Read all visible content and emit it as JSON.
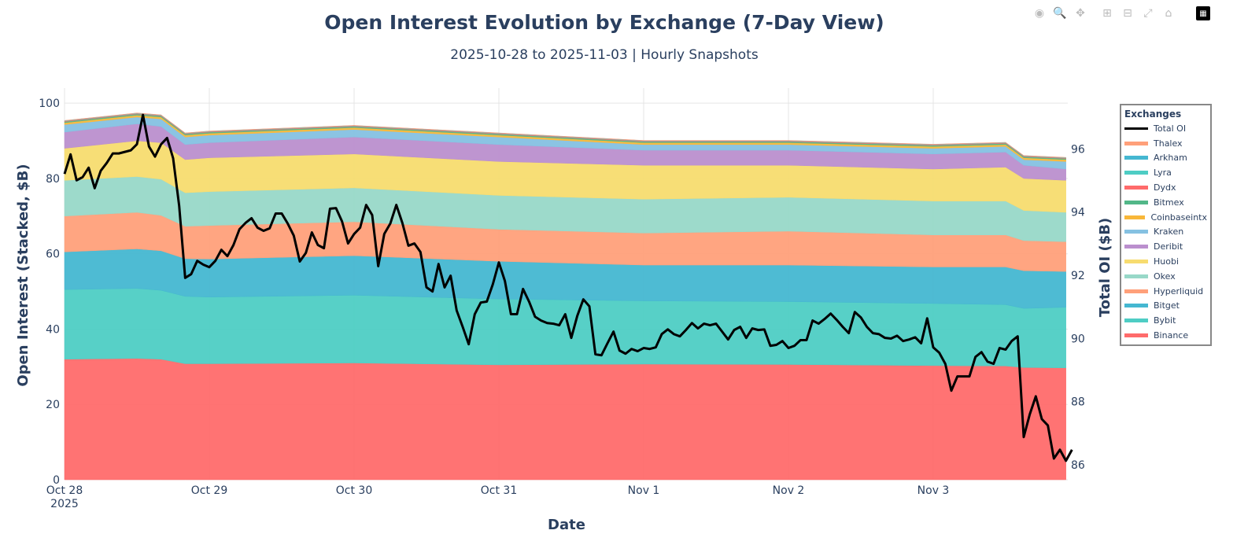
{
  "chart_data": {
    "type": "area",
    "title": "Open Interest Evolution by Exchange (7-Day View)",
    "subtitle": "2025-10-28 to 2025-11-03 | Hourly Snapshots",
    "xlabel": "Date",
    "ylabel": "Open Interest (Stacked, $B)",
    "y2label": "Total OI ($B)",
    "x_ticks": [
      "Oct 28\n2025",
      "Oct 29",
      "Oct 30",
      "Oct 31",
      "Nov 1",
      "Nov 2",
      "Nov 3"
    ],
    "x_start": "2025-10-28 00:00",
    "ylim": [
      0,
      104
    ],
    "y_ticks": [
      0,
      20,
      40,
      60,
      80,
      100
    ],
    "y2lim": [
      85.5,
      97.9
    ],
    "y2_ticks": [
      86,
      88,
      90,
      92,
      94,
      96
    ],
    "grid": true,
    "legend_title": "Exchanges",
    "legend_position": "right",
    "stack_hours": [
      0,
      12,
      16,
      20,
      24,
      48,
      72,
      96,
      120,
      144,
      156,
      159,
      166
    ],
    "series": [
      {
        "name": "Binance",
        "color": "#FF6B6B",
        "values": [
          32,
          32.2,
          32,
          30.8,
          30.8,
          31,
          30.5,
          30.7,
          30.6,
          30.3,
          30.2,
          29.8,
          29.7
        ]
      },
      {
        "name": "Bybit",
        "color": "#4ECDC4",
        "values": [
          18.5,
          18.6,
          18.3,
          17.9,
          17.7,
          18,
          17.5,
          16.8,
          16.7,
          16.5,
          16.3,
          15.7,
          16.1
        ]
      },
      {
        "name": "Bitget",
        "color": "#45B7D1",
        "values": [
          10,
          10.5,
          10.5,
          10,
          10.1,
          10.5,
          10,
          9.5,
          9.7,
          9.7,
          10,
          10,
          9.5
        ]
      },
      {
        "name": "Hyperliquid",
        "color": "#FFA07A",
        "values": [
          9.5,
          9.7,
          9.4,
          8.6,
          8.9,
          9,
          8.5,
          8.5,
          9,
          8.5,
          8.5,
          8,
          7.9
        ]
      },
      {
        "name": "Okex",
        "color": "#98D8C8",
        "values": [
          9.5,
          9.5,
          9.6,
          8.9,
          9,
          9,
          9,
          9,
          9,
          9,
          9,
          8,
          7.8
        ]
      },
      {
        "name": "Huobi",
        "color": "#F7DC6F",
        "values": [
          8.5,
          9.5,
          9.7,
          8.8,
          9,
          9,
          9,
          9,
          8.5,
          8.5,
          9,
          8.5,
          8.5
        ]
      },
      {
        "name": "Deribit",
        "color": "#BB8FCE",
        "values": [
          4.3,
          4.5,
          4.3,
          4,
          4,
          4.5,
          4.5,
          4,
          4,
          4,
          4,
          3.5,
          3
        ]
      },
      {
        "name": "Kraken",
        "color": "#85C1E2",
        "values": [
          2,
          1.8,
          2,
          2,
          2,
          2,
          2,
          1.5,
          1.5,
          1.5,
          1.5,
          1.5,
          2
        ]
      },
      {
        "name": "Coinbaseintx",
        "color": "#F8B739",
        "values": [
          0.5,
          0.5,
          0.5,
          0.5,
          0.5,
          0.5,
          0.5,
          0.5,
          0.5,
          0.5,
          0.5,
          0.5,
          0.5
        ]
      },
      {
        "name": "Bitmex",
        "color": "#52B788",
        "values": [
          0.3,
          0.3,
          0.3,
          0.3,
          0.3,
          0.3,
          0.3,
          0.3,
          0.3,
          0.3,
          0.3,
          0.3,
          0.3
        ]
      },
      {
        "name": "Dydx",
        "color": "#FF6B6B",
        "values": [
          0.15,
          0.15,
          0.15,
          0.15,
          0.15,
          0.15,
          0.15,
          0.15,
          0.15,
          0.15,
          0.15,
          0.15,
          0.15
        ]
      },
      {
        "name": "Lyra",
        "color": "#4ECDC4",
        "values": [
          0.05,
          0.05,
          0.05,
          0.05,
          0.05,
          0.05,
          0.05,
          0.05,
          0.05,
          0.05,
          0.05,
          0.05,
          0.05
        ]
      },
      {
        "name": "Arkham",
        "color": "#45B7D1",
        "values": [
          0.05,
          0.05,
          0.05,
          0.05,
          0.05,
          0.05,
          0.05,
          0.05,
          0.05,
          0.05,
          0.05,
          0.05,
          0.05
        ]
      },
      {
        "name": "Thalex",
        "color": "#FFA07A",
        "values": [
          0.05,
          0.05,
          0.05,
          0.05,
          0.05,
          0.05,
          0.05,
          0.05,
          0.05,
          0.05,
          0.05,
          0.05,
          0.05
        ]
      }
    ],
    "total_oi": {
      "name": "Total OI",
      "color": "#000000",
      "axis": "right",
      "interval": "hourly",
      "values": [
        95.18,
        95.8,
        94.98,
        95.08,
        95.38,
        94.73,
        95.28,
        95.53,
        95.83,
        95.83,
        95.88,
        95.93,
        96.12,
        97.05,
        96.05,
        95.73,
        96.12,
        96.32,
        95.68,
        94.18,
        91.89,
        92.01,
        92.43,
        92.31,
        92.23,
        92.43,
        92.78,
        92.58,
        92.93,
        93.43,
        93.63,
        93.78,
        93.48,
        93.38,
        93.46,
        93.93,
        93.93,
        93.61,
        93.23,
        92.41,
        92.68,
        93.33,
        92.93,
        92.83,
        94.08,
        94.1,
        93.68,
        92.98,
        93.28,
        93.48,
        94.2,
        93.88,
        92.26,
        93.28,
        93.61,
        94.2,
        93.63,
        92.91,
        92.98,
        92.71,
        91.59,
        91.46,
        92.33,
        91.59,
        91.96,
        90.86,
        90.34,
        89.79,
        90.74,
        91.11,
        91.14,
        91.69,
        92.38,
        91.79,
        90.74,
        90.74,
        91.54,
        91.14,
        90.66,
        90.54,
        90.46,
        90.44,
        90.39,
        90.74,
        89.99,
        90.69,
        91.21,
        90.99,
        89.47,
        89.44,
        89.82,
        90.19,
        89.59,
        89.49,
        89.64,
        89.57,
        89.67,
        89.64,
        89.69,
        90.11,
        90.26,
        90.11,
        90.04,
        90.24,
        90.46,
        90.29,
        90.44,
        90.39,
        90.44,
        90.19,
        89.94,
        90.24,
        90.34,
        89.99,
        90.29,
        90.24,
        90.26,
        89.74,
        89.77,
        89.89,
        89.67,
        89.74,
        89.92,
        89.92,
        90.54,
        90.44,
        90.59,
        90.76,
        90.56,
        90.34,
        90.14,
        90.81,
        90.64,
        90.34,
        90.14,
        90.11,
        89.99,
        89.97,
        90.06,
        89.89,
        89.94,
        90.01,
        89.82,
        90.61,
        89.69,
        89.52,
        89.17,
        88.32,
        88.77,
        88.77,
        88.77,
        89.39,
        89.54,
        89.24,
        89.17,
        89.67,
        89.62,
        89.89,
        90.04,
        86.85,
        87.57,
        88.14,
        87.42,
        87.22,
        86.17,
        86.45,
        86.1,
        86.45
      ]
    }
  },
  "legend_order": [
    "Total OI",
    "Thalex",
    "Arkham",
    "Lyra",
    "Dydx",
    "Bitmex",
    "Coinbaseintx",
    "Kraken",
    "Deribit",
    "Huobi",
    "Okex",
    "Hyperliquid",
    "Bitget",
    "Bybit",
    "Binance"
  ],
  "modebar": [
    "camera-icon",
    "zoom-icon",
    "pan-icon",
    "zoom-in-icon",
    "zoom-out-icon",
    "autoscale-icon",
    "reset-axes-icon",
    "plotly-logo"
  ]
}
